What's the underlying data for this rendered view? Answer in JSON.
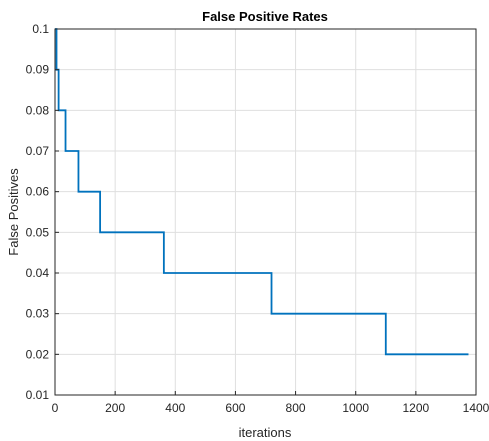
{
  "chart_data": {
    "type": "line",
    "title": "False Positive Rates",
    "xlabel": "iterations",
    "ylabel": "False Positives",
    "xlim": [
      0,
      1400
    ],
    "ylim": [
      0.01,
      0.1
    ],
    "xticks": [
      "0",
      "200",
      "400",
      "600",
      "800",
      "1000",
      "1200",
      "1400"
    ],
    "yticks": [
      "0.01",
      "0.02",
      "0.03",
      "0.04",
      "0.05",
      "0.06",
      "0.07",
      "0.08",
      "0.09",
      "0.1"
    ],
    "grid": true,
    "line_color": "#0072BD",
    "step": true,
    "series": [
      {
        "x": [
          0,
          5,
          12,
          35,
          78,
          150,
          362,
          720,
          1100,
          1375
        ],
        "y": [
          0.1,
          0.09,
          0.08,
          0.07,
          0.06,
          0.05,
          0.04,
          0.03,
          0.02,
          0.02
        ]
      }
    ]
  }
}
